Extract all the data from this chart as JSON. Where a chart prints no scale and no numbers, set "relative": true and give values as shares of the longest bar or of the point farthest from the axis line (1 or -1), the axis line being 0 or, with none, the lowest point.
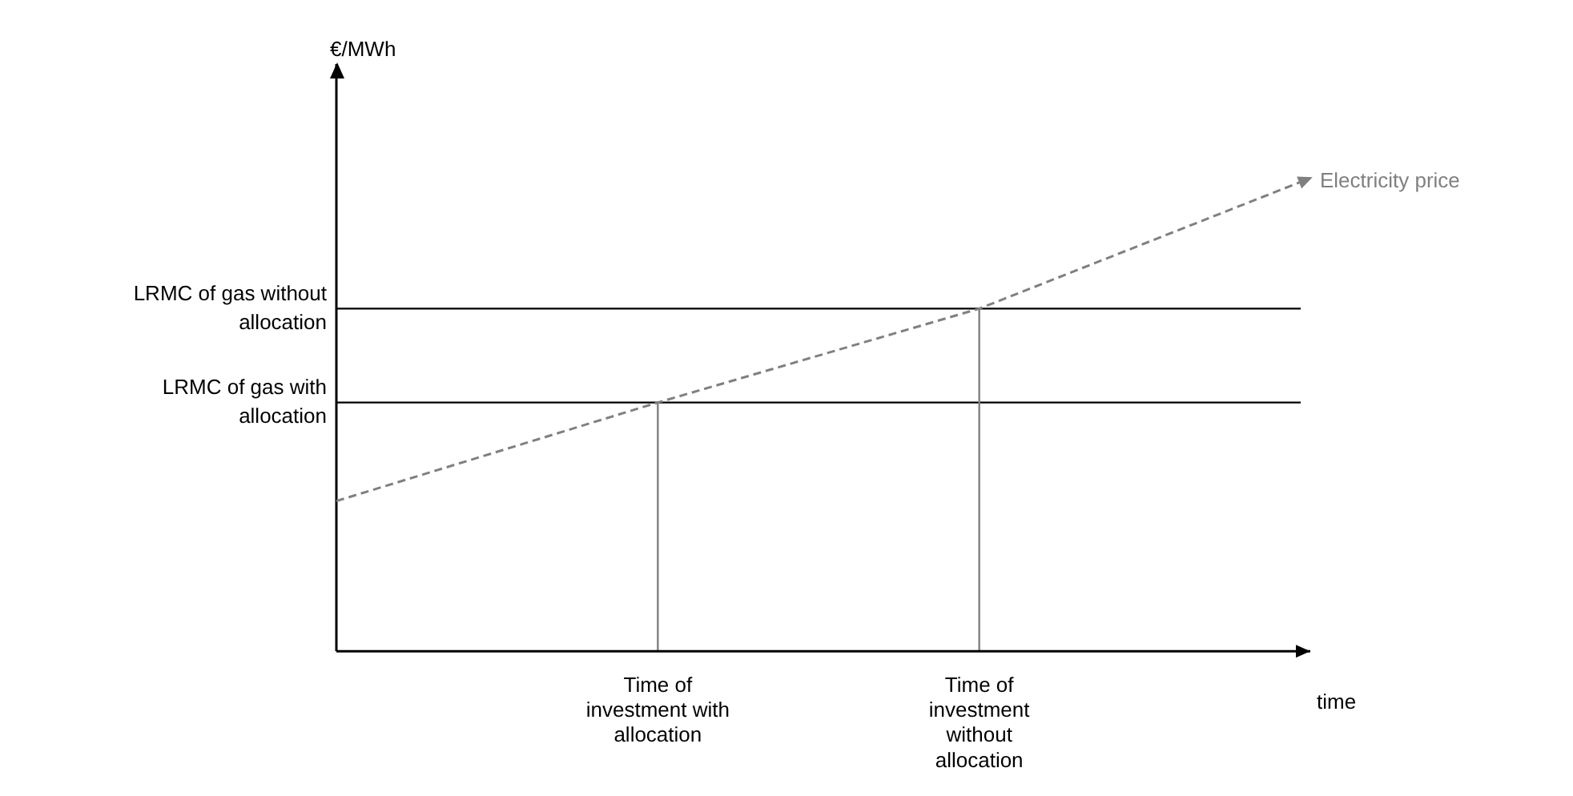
{
  "chart_data": {
    "type": "line",
    "relative": true,
    "annotations": [
      "€/MWh"
    ],
    "xlabel": "time",
    "categories": [
      null,
      "Time of investment with allocation",
      "Time of investment without allocation",
      null
    ],
    "series": [
      {
        "name": "Electricity price",
        "color": "#808080",
        "values": [
          0.32,
          0.53,
          0.73,
          1
        ],
        "line_style": "dashed"
      }
    ],
    "ref_lines": [
      {
        "axis": "y",
        "value": 0.73,
        "label": "LRMC of gas without allocation",
        "color": "#000000"
      },
      {
        "axis": "y",
        "value": 0.53,
        "label": "LRMC of gas with allocation",
        "color": "#000000"
      },
      {
        "axis": "x",
        "value": "Time of investment with allocation",
        "color": "#808080"
      },
      {
        "axis": "x",
        "value": "Time of investment without allocation",
        "color": "#808080"
      }
    ],
    "grid": false,
    "legend": false,
    "marker": "none"
  }
}
